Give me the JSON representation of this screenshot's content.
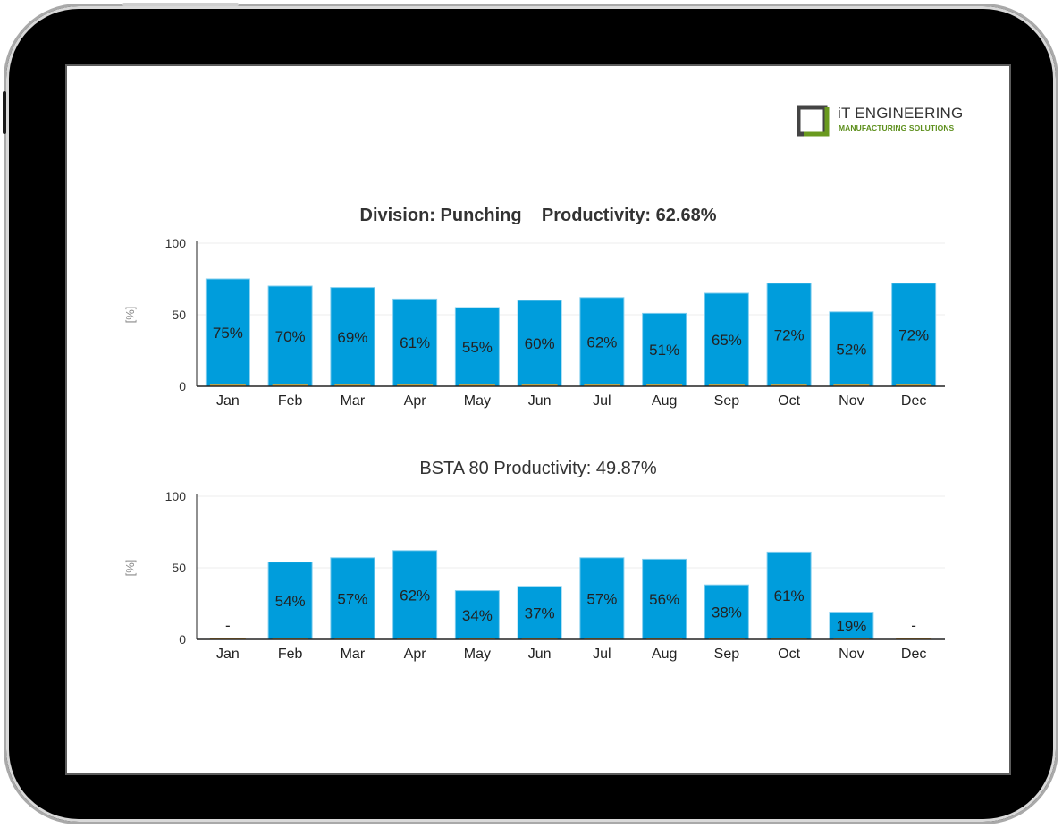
{
  "brand": {
    "name": "iT ENGINEERING",
    "tagline": "MANUFACTURING SOLUTIONS",
    "colors": {
      "dark": "#444444",
      "green": "#6a9a1f"
    }
  },
  "colors": {
    "bar": "#009ddc",
    "bar_edge": "#7fcdee",
    "baseline_marker": "#f5a623",
    "grid": "#eeeeee",
    "axis": "#222222",
    "label": "#222222"
  },
  "chart_data": [
    {
      "type": "bar",
      "title": "Division: Punching",
      "subtitle": "Productivity: 62.68%",
      "ylabel": "[%]",
      "xlabel": "",
      "ylim": [
        0,
        100
      ],
      "yticks": [
        "0",
        "50",
        "100"
      ],
      "grid": true,
      "categories": [
        "Jan",
        "Feb",
        "Mar",
        "Apr",
        "May",
        "Jun",
        "Jul",
        "Aug",
        "Sep",
        "Oct",
        "Nov",
        "Dec"
      ],
      "values": [
        75,
        70,
        69,
        61,
        55,
        60,
        62,
        51,
        65,
        72,
        52,
        72
      ],
      "labels": [
        "75%",
        "70%",
        "69%",
        "61%",
        "55%",
        "60%",
        "62%",
        "51%",
        "65%",
        "72%",
        "52%",
        "72%"
      ]
    },
    {
      "type": "bar",
      "title": "BSTA 80 Productivity: 49.87%",
      "ylabel": "[%]",
      "xlabel": "",
      "ylim": [
        0,
        100
      ],
      "yticks": [
        "0",
        "50",
        "100"
      ],
      "grid": true,
      "categories": [
        "Jan",
        "Feb",
        "Mar",
        "Apr",
        "May",
        "Jun",
        "Jul",
        "Aug",
        "Sep",
        "Oct",
        "Nov",
        "Dec"
      ],
      "values": [
        null,
        54,
        57,
        62,
        34,
        37,
        57,
        56,
        38,
        61,
        19,
        null
      ],
      "labels": [
        "-",
        "54%",
        "57%",
        "62%",
        "34%",
        "37%",
        "57%",
        "56%",
        "38%",
        "61%",
        "19%",
        "-"
      ]
    }
  ]
}
